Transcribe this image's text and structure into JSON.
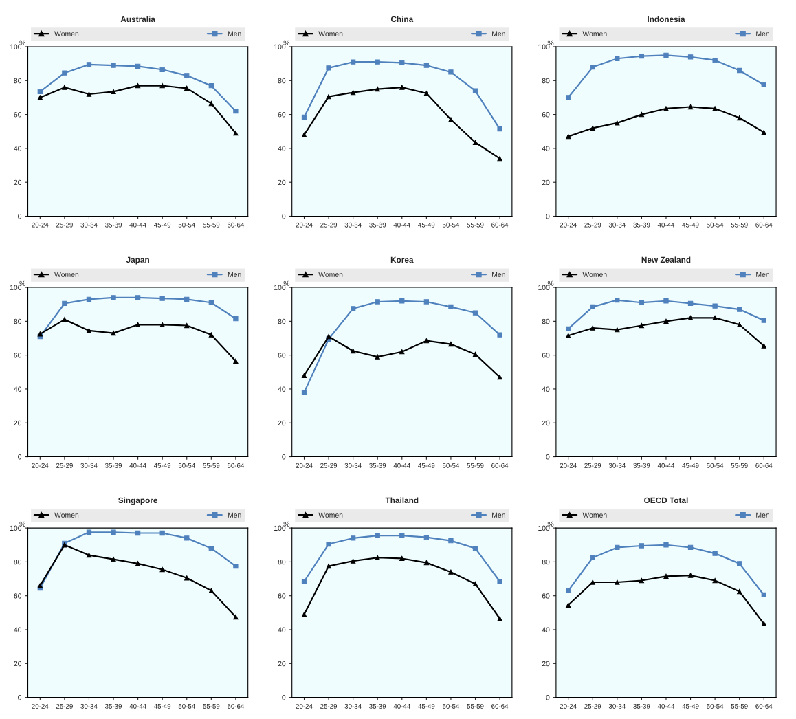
{
  "chart_data": [
    {
      "type": "line",
      "title": "Australia",
      "ylabel": "%",
      "categories": [
        "20-24",
        "25-29",
        "30-34",
        "35-39",
        "40-44",
        "45-49",
        "50-54",
        "55-59",
        "60-64"
      ],
      "ylim": [
        0,
        100
      ],
      "yticks": [
        0,
        20,
        40,
        60,
        80,
        100
      ],
      "grid": false,
      "legend": "top",
      "series": [
        {
          "name": "Women",
          "color": "#000000",
          "marker": "triangle",
          "values": [
            70,
            76,
            72,
            73.5,
            77,
            77,
            75.5,
            66.5,
            49
          ]
        },
        {
          "name": "Men",
          "color": "#4f81bd",
          "marker": "square",
          "values": [
            73.5,
            84.5,
            89.5,
            89,
            88.5,
            86.5,
            83,
            77,
            62
          ]
        }
      ]
    },
    {
      "type": "line",
      "title": "China",
      "ylabel": "%",
      "categories": [
        "20-24",
        "25-29",
        "30-34",
        "35-39",
        "40-44",
        "45-49",
        "50-54",
        "55-59",
        "60-64"
      ],
      "ylim": [
        0,
        100
      ],
      "yticks": [
        0,
        20,
        40,
        60,
        80,
        100
      ],
      "grid": false,
      "legend": "top",
      "series": [
        {
          "name": "Women",
          "color": "#000000",
          "marker": "triangle",
          "values": [
            48,
            70.5,
            73,
            75,
            76,
            72.5,
            57,
            43.5,
            34
          ]
        },
        {
          "name": "Men",
          "color": "#4f81bd",
          "marker": "square",
          "values": [
            58.5,
            87.5,
            91,
            91,
            90.5,
            89,
            85,
            74,
            51.5
          ]
        }
      ]
    },
    {
      "type": "line",
      "title": "Indonesia",
      "ylabel": "%",
      "categories": [
        "20-24",
        "25-29",
        "30-34",
        "35-39",
        "40-44",
        "45-49",
        "50-54",
        "55-59",
        "60-64"
      ],
      "ylim": [
        0,
        100
      ],
      "yticks": [
        0,
        20,
        40,
        60,
        80,
        100
      ],
      "grid": false,
      "legend": "top",
      "series": [
        {
          "name": "Women",
          "color": "#000000",
          "marker": "triangle",
          "values": [
            47,
            52,
            55,
            60,
            63.5,
            64.5,
            63.5,
            58,
            49.5
          ]
        },
        {
          "name": "Men",
          "color": "#4f81bd",
          "marker": "square",
          "values": [
            70,
            88,
            93,
            94.5,
            95,
            94,
            92,
            86,
            77.5
          ]
        }
      ]
    },
    {
      "type": "line",
      "title": "Japan",
      "ylabel": "%",
      "categories": [
        "20-24",
        "25-29",
        "30-34",
        "35-39",
        "40-44",
        "45-49",
        "50-54",
        "55-59",
        "60-64"
      ],
      "ylim": [
        0,
        100
      ],
      "yticks": [
        0,
        20,
        40,
        60,
        80,
        100
      ],
      "grid": false,
      "legend": "top",
      "series": [
        {
          "name": "Women",
          "color": "#000000",
          "marker": "triangle",
          "values": [
            72.5,
            81,
            74.5,
            73,
            78,
            78,
            77.5,
            72,
            56.5
          ]
        },
        {
          "name": "Men",
          "color": "#4f81bd",
          "marker": "square",
          "values": [
            71,
            90.5,
            93,
            94,
            94,
            93.5,
            93,
            91,
            81.5
          ]
        }
      ]
    },
    {
      "type": "line",
      "title": "Korea",
      "ylabel": "%",
      "categories": [
        "20-24",
        "25-29",
        "30-34",
        "35-39",
        "40-44",
        "45-49",
        "50-54",
        "55-59",
        "60-64"
      ],
      "ylim": [
        0,
        100
      ],
      "yticks": [
        0,
        20,
        40,
        60,
        80,
        100
      ],
      "grid": false,
      "legend": "top",
      "series": [
        {
          "name": "Women",
          "color": "#000000",
          "marker": "triangle",
          "values": [
            48,
            71,
            62.5,
            59,
            62,
            68.5,
            66.5,
            60.5,
            47
          ]
        },
        {
          "name": "Men",
          "color": "#4f81bd",
          "marker": "square",
          "values": [
            38,
            69.5,
            87.5,
            91.5,
            92,
            91.5,
            88.5,
            85,
            72
          ]
        }
      ]
    },
    {
      "type": "line",
      "title": "New Zealand",
      "ylabel": "%",
      "categories": [
        "20-24",
        "25-29",
        "30-34",
        "35-39",
        "40-44",
        "45-49",
        "50-54",
        "55-59",
        "60-64"
      ],
      "ylim": [
        0,
        100
      ],
      "yticks": [
        0,
        20,
        40,
        60,
        80,
        100
      ],
      "grid": false,
      "legend": "top",
      "series": [
        {
          "name": "Women",
          "color": "#000000",
          "marker": "triangle",
          "values": [
            71.5,
            76,
            75,
            77.5,
            80,
            82,
            82,
            78,
            65.5
          ]
        },
        {
          "name": "Men",
          "color": "#4f81bd",
          "marker": "square",
          "values": [
            75.5,
            88.5,
            92.5,
            91,
            92,
            90.5,
            89,
            87,
            80.5
          ]
        }
      ]
    },
    {
      "type": "line",
      "title": "Singapore",
      "ylabel": "%",
      "categories": [
        "20-24",
        "25-29",
        "30-34",
        "35-39",
        "40-44",
        "45-49",
        "50-54",
        "55-59",
        "60-64"
      ],
      "ylim": [
        0,
        100
      ],
      "yticks": [
        0,
        20,
        40,
        60,
        80,
        100
      ],
      "grid": false,
      "legend": "top",
      "series": [
        {
          "name": "Women",
          "color": "#000000",
          "marker": "triangle",
          "values": [
            66,
            90,
            84,
            81.5,
            79,
            75.5,
            70.5,
            63,
            47.5
          ]
        },
        {
          "name": "Men",
          "color": "#4f81bd",
          "marker": "square",
          "values": [
            64.5,
            91,
            97.5,
            97.5,
            97,
            97,
            94,
            88,
            77.5
          ]
        }
      ]
    },
    {
      "type": "line",
      "title": "Thailand",
      "ylabel": "%",
      "categories": [
        "20-24",
        "25-29",
        "30-34",
        "35-39",
        "40-44",
        "45-49",
        "50-54",
        "55-59",
        "60-64"
      ],
      "ylim": [
        0,
        100
      ],
      "yticks": [
        0,
        20,
        40,
        60,
        80,
        100
      ],
      "grid": false,
      "legend": "top",
      "series": [
        {
          "name": "Women",
          "color": "#000000",
          "marker": "triangle",
          "values": [
            49,
            77.5,
            80.5,
            82.5,
            82,
            79.5,
            74,
            67,
            46.5
          ]
        },
        {
          "name": "Men",
          "color": "#4f81bd",
          "marker": "square",
          "values": [
            68.5,
            90.5,
            94,
            95.5,
            95.5,
            94.5,
            92.5,
            88,
            68.5
          ]
        }
      ]
    },
    {
      "type": "line",
      "title": "OECD Total",
      "ylabel": "%",
      "categories": [
        "20-24",
        "25-29",
        "30-34",
        "35-39",
        "40-44",
        "45-49",
        "50-54",
        "55-59",
        "60-64"
      ],
      "ylim": [
        0,
        100
      ],
      "yticks": [
        0,
        20,
        40,
        60,
        80,
        100
      ],
      "grid": false,
      "legend": "top",
      "series": [
        {
          "name": "Women",
          "color": "#000000",
          "marker": "triangle",
          "values": [
            54.5,
            68,
            68,
            69,
            71.5,
            72,
            69,
            62.5,
            43.5
          ]
        },
        {
          "name": "Men",
          "color": "#4f81bd",
          "marker": "square",
          "values": [
            63,
            82.5,
            88.5,
            89.5,
            90,
            88.5,
            85,
            79,
            60.5
          ]
        }
      ]
    }
  ]
}
